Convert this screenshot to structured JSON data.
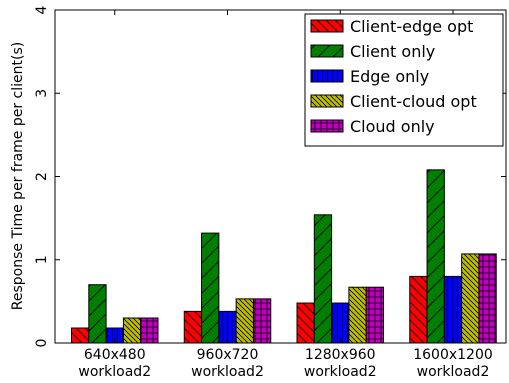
{
  "chart_data": {
    "type": "bar",
    "title": "",
    "xlabel": "",
    "ylabel": "Response Time per frame per client(s)",
    "ylim": [
      0,
      4
    ],
    "yticks": [
      "0",
      "1",
      "2",
      "3",
      "4"
    ],
    "grid": false,
    "legend_position": "top-right",
    "categories": [
      {
        "line1": "640x480",
        "line2": "workload2"
      },
      {
        "line1": "960x720",
        "line2": "workload2"
      },
      {
        "line1": "1280x960",
        "line2": "workload2"
      },
      {
        "line1": "1600x1200",
        "line2": "workload2"
      }
    ],
    "series": [
      {
        "name": "Client-edge opt",
        "color": "#ff0000",
        "hatch": "backslash",
        "values": [
          0.18,
          0.38,
          0.48,
          0.8
        ]
      },
      {
        "name": "Client only",
        "color": "#007f00",
        "hatch": "slash",
        "values": [
          0.7,
          1.32,
          1.54,
          2.08
        ]
      },
      {
        "name": "Edge only",
        "color": "#0000ff",
        "hatch": "vertical",
        "values": [
          0.18,
          0.38,
          0.48,
          0.8
        ]
      },
      {
        "name": "Client-cloud opt",
        "color": "#bfbf00",
        "hatch": "backslash-dense",
        "values": [
          0.3,
          0.53,
          0.67,
          1.07
        ]
      },
      {
        "name": "Cloud only",
        "color": "#bf00bf",
        "hatch": "cross",
        "values": [
          0.3,
          0.53,
          0.67,
          1.07
        ]
      }
    ]
  }
}
